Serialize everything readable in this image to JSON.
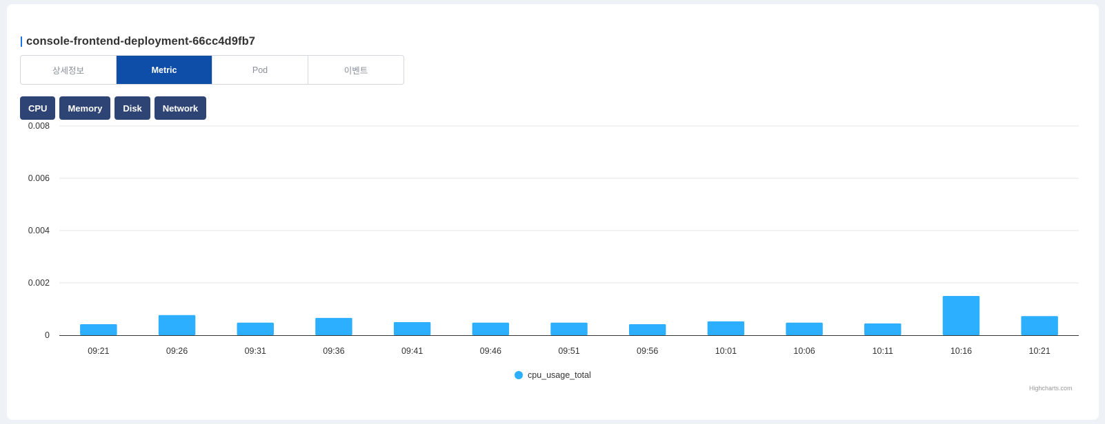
{
  "header": {
    "title": "console-frontend-deployment-66cc4d9fb7"
  },
  "tabs": [
    {
      "label": "상세정보",
      "active": false
    },
    {
      "label": "Metric",
      "active": true
    },
    {
      "label": "Pod",
      "active": false
    },
    {
      "label": "이벤트",
      "active": false
    }
  ],
  "metric_buttons": [
    {
      "label": "CPU"
    },
    {
      "label": "Memory"
    },
    {
      "label": "Disk"
    },
    {
      "label": "Network"
    }
  ],
  "colors": {
    "bar": "#2caffe",
    "active_tab": "#0e4ea9",
    "button": "#2e4475",
    "accent": "#1a73e8"
  },
  "chart_data": {
    "type": "bar",
    "categories": [
      "09:21",
      "09:26",
      "09:31",
      "09:36",
      "09:41",
      "09:46",
      "09:51",
      "09:56",
      "10:01",
      "10:06",
      "10:11",
      "10:16",
      "10:21"
    ],
    "series": [
      {
        "name": "cpu_usage_total",
        "values": [
          0.00042,
          0.00077,
          0.00048,
          0.00066,
          0.0005,
          0.00048,
          0.00048,
          0.00042,
          0.00053,
          0.00048,
          0.00045,
          0.0015,
          0.00073
        ]
      }
    ],
    "y_ticks": [
      "0",
      "0.002",
      "0.004",
      "0.006",
      "0.008"
    ],
    "ylim": [
      0,
      0.008
    ],
    "grid": true,
    "legend_position": "bottom-center",
    "credits": "Highcharts.com"
  }
}
